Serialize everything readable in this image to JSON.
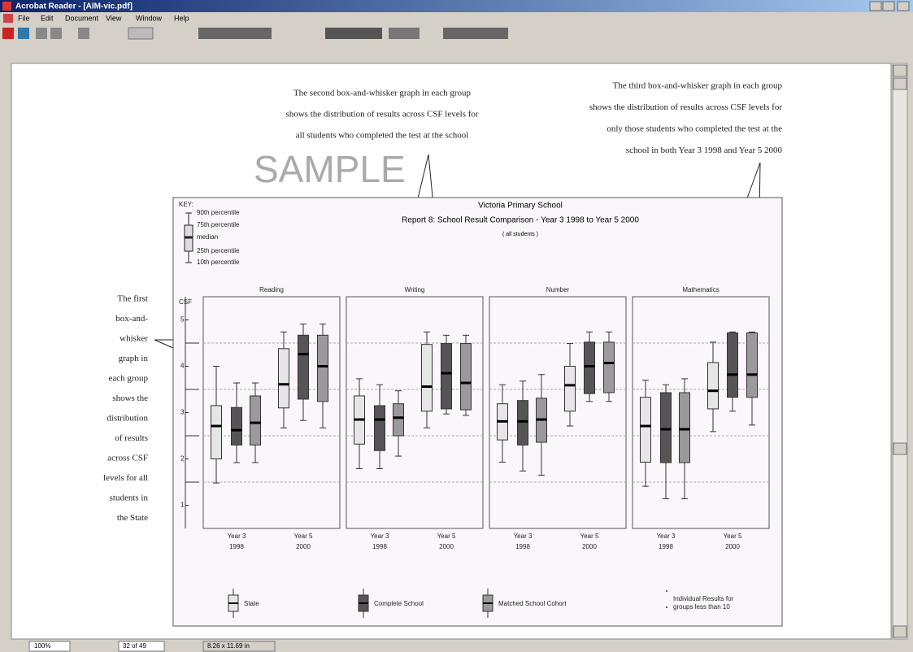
{
  "window": {
    "title": "Acrobat Reader - [AIM-vic.pdf]",
    "menu": [
      "File",
      "Edit",
      "Document",
      "View",
      "Window",
      "Help"
    ],
    "status": {
      "zoom": "100%",
      "page": "32 of 49",
      "size": "8.26 x 11.69 in"
    }
  },
  "annotations": {
    "watermark": "SAMPLE",
    "left": [
      "The first",
      "box-and-",
      "whisker",
      "graph in",
      "each group",
      "shows the",
      "distribution",
      "of results",
      "across CSF",
      "levels for all",
      "students in",
      "the State"
    ],
    "middle": [
      "The second box-and-whisker graph in each group",
      "shows the distribution of results across CSF levels for",
      "all students who completed the test at the school"
    ],
    "right": [
      "The third box-and-whisker graph in each group",
      "shows the distribution of results across CSF levels for",
      "only those students who completed the test at the",
      "school in both Year 3 1998 and Year 5 2000"
    ]
  },
  "chart_data": {
    "type": "box",
    "title": "Victoria Primary School",
    "subtitle": "Report 8: School Result Comparison - Year 3 1998 to Year 5 2000",
    "note": "( all students )",
    "ylabel": "CSF",
    "ylim": [
      0.5,
      5.5
    ],
    "yticks": [
      1,
      2,
      3,
      4,
      5
    ],
    "gridlines": [
      1.5,
      2.5,
      3.5,
      4.5
    ],
    "key": {
      "title": "KEY:",
      "labels": [
        "90th percentile",
        "75th percentile",
        "median",
        "25th percentile",
        "10th percentile"
      ]
    },
    "categories": [
      {
        "label": "Year 3",
        "year": "1998"
      },
      {
        "label": "Year 5",
        "year": "2000"
      }
    ],
    "series": [
      {
        "name": "State",
        "color": "#e6e6e6"
      },
      {
        "name": "Complete School",
        "color": "#555555"
      },
      {
        "name": "Matched School Cohort",
        "color": "#9a9a9a"
      }
    ],
    "legend_note": [
      "Individual Results for",
      "groups less than 10"
    ],
    "panels": [
      {
        "title": "Reading",
        "boxes": [
          [
            1.48,
            2.0,
            2.71,
            3.15,
            4.0
          ],
          [
            1.92,
            2.3,
            2.62,
            3.11,
            3.64
          ],
          [
            1.92,
            2.3,
            2.78,
            3.36,
            3.64
          ],
          [
            2.67,
            3.1,
            3.61,
            4.38,
            4.74
          ],
          [
            2.83,
            3.29,
            4.26,
            4.67,
            4.91
          ],
          [
            2.67,
            3.24,
            4.0,
            4.67,
            4.91
          ]
        ]
      },
      {
        "title": "Writing",
        "boxes": [
          [
            1.79,
            2.32,
            2.85,
            3.36,
            3.73
          ],
          [
            1.79,
            2.18,
            2.85,
            3.15,
            3.6
          ],
          [
            2.06,
            2.5,
            2.89,
            3.19,
            3.47
          ],
          [
            2.67,
            3.03,
            3.56,
            4.47,
            4.74
          ],
          [
            2.97,
            3.08,
            3.85,
            4.49,
            4.67
          ],
          [
            2.94,
            3.06,
            3.64,
            4.49,
            4.67
          ]
        ]
      },
      {
        "title": "Number",
        "boxes": [
          [
            1.93,
            2.41,
            2.81,
            3.19,
            3.6
          ],
          [
            1.74,
            2.3,
            2.81,
            3.26,
            3.68
          ],
          [
            1.65,
            2.36,
            2.85,
            3.31,
            3.82
          ],
          [
            2.71,
            3.03,
            3.59,
            4.0,
            4.49
          ],
          [
            3.24,
            3.41,
            4.0,
            4.52,
            4.74
          ],
          [
            3.24,
            3.43,
            4.07,
            4.52,
            4.74
          ]
        ]
      },
      {
        "title": "Mathematics",
        "boxes": [
          [
            1.41,
            1.93,
            2.71,
            3.33,
            3.7
          ],
          [
            1.14,
            1.92,
            2.64,
            3.43,
            3.6
          ],
          [
            1.14,
            1.92,
            2.64,
            3.43,
            3.73
          ],
          [
            2.59,
            3.08,
            3.47,
            4.08,
            4.52
          ],
          [
            3.03,
            3.33,
            3.82,
            4.72,
            4.74
          ],
          [
            2.73,
            3.33,
            3.82,
            4.72,
            4.74
          ]
        ]
      }
    ]
  }
}
